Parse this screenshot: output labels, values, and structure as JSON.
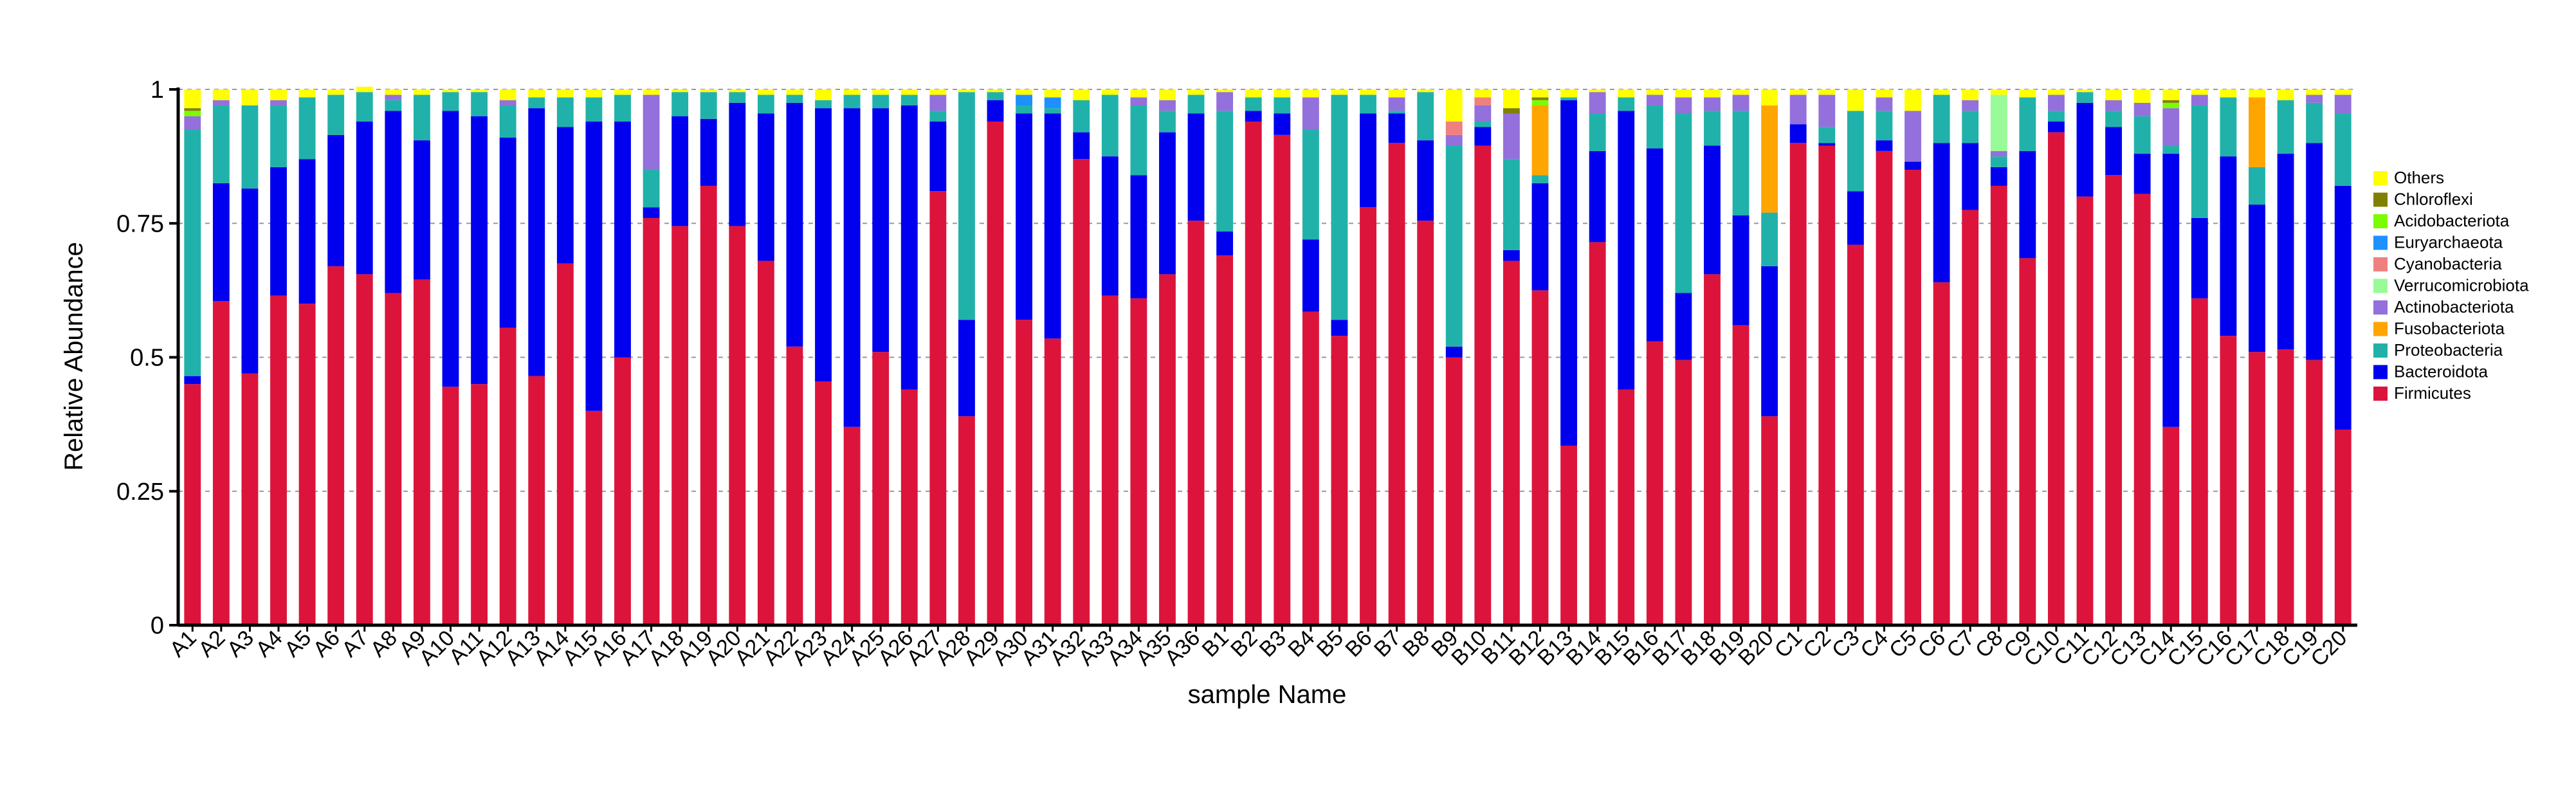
{
  "chart_data": {
    "type": "bar",
    "stacked": true,
    "xlabel": "sample Name",
    "ylabel": "Relative Abundance",
    "ylim": [
      0,
      1
    ],
    "yticks": [
      {
        "value": 0,
        "label": "0"
      },
      {
        "value": 0.25,
        "label": "0.25"
      },
      {
        "value": 0.5,
        "label": "0.5"
      },
      {
        "value": 0.75,
        "label": "0.75"
      },
      {
        "value": 1,
        "label": "1"
      }
    ],
    "grid": "dashed horizontal",
    "legend_position": "right",
    "categories": [
      "A1",
      "A2",
      "A3",
      "A4",
      "A5",
      "A6",
      "A7",
      "A8",
      "A9",
      "A10",
      "A11",
      "A12",
      "A13",
      "A14",
      "A15",
      "A16",
      "A17",
      "A18",
      "A19",
      "A20",
      "A21",
      "A22",
      "A23",
      "A24",
      "A25",
      "A26",
      "A27",
      "A28",
      "A29",
      "A30",
      "A31",
      "A32",
      "A33",
      "A34",
      "A35",
      "A36",
      "B1",
      "B2",
      "B3",
      "B4",
      "B5",
      "B6",
      "B7",
      "B8",
      "B9",
      "B10",
      "B11",
      "B12",
      "B13",
      "B14",
      "B15",
      "B16",
      "B17",
      "B18",
      "B19",
      "B20",
      "C1",
      "C2",
      "C3",
      "C4",
      "C5",
      "C6",
      "C7",
      "C8",
      "C9",
      "C10",
      "C11",
      "C12",
      "C13",
      "C14",
      "C15",
      "C16",
      "C17",
      "C18",
      "C19",
      "C20"
    ],
    "series": [
      {
        "name": "Firmicutes",
        "color": "#dc143c",
        "values": [
          0.45,
          0.605,
          0.47,
          0.615,
          0.6,
          0.67,
          0.655,
          0.62,
          0.645,
          0.445,
          0.45,
          0.555,
          0.465,
          0.675,
          0.4,
          0.5,
          0.76,
          0.745,
          0.82,
          0.745,
          0.68,
          0.52,
          0.455,
          0.37,
          0.51,
          0.44,
          0.81,
          0.39,
          0.94,
          0.57,
          0.535,
          0.87,
          0.615,
          0.61,
          0.655,
          0.755,
          0.69,
          0.94,
          0.915,
          0.585,
          0.54,
          0.78,
          0.9,
          0.755,
          0.5,
          0.895,
          0.68,
          0.625,
          0.335,
          0.715,
          0.44,
          0.53,
          0.495,
          0.655,
          0.56,
          0.39,
          0.9,
          0.895,
          0.71,
          0.885,
          0.85,
          0.64,
          0.775,
          0.82,
          0.685,
          0.92,
          0.8,
          0.84,
          0.805,
          0.37,
          0.61,
          0.54,
          0.51,
          0.515,
          0.495,
          0.365
        ]
      },
      {
        "name": "Bacteroidota",
        "color": "#0000ee",
        "values": [
          0.015,
          0.22,
          0.345,
          0.24,
          0.27,
          0.245,
          0.285,
          0.34,
          0.26,
          0.515,
          0.5,
          0.355,
          0.5,
          0.255,
          0.54,
          0.44,
          0.02,
          0.205,
          0.125,
          0.23,
          0.275,
          0.455,
          0.51,
          0.595,
          0.455,
          0.53,
          0.13,
          0.18,
          0.04,
          0.385,
          0.42,
          0.05,
          0.26,
          0.23,
          0.265,
          0.2,
          0.045,
          0.02,
          0.04,
          0.135,
          0.03,
          0.175,
          0.055,
          0.15,
          0.02,
          0.035,
          0.02,
          0.2,
          0.645,
          0.17,
          0.52,
          0.36,
          0.125,
          0.24,
          0.205,
          0.28,
          0.035,
          0.005,
          0.1,
          0.02,
          0.015,
          0.26,
          0.125,
          0.035,
          0.2,
          0.02,
          0.175,
          0.09,
          0.075,
          0.51,
          0.15,
          0.335,
          0.275,
          0.365,
          0.405,
          0.455
        ]
      },
      {
        "name": "Proteobacteria",
        "color": "#20b2aa",
        "values": [
          0.46,
          0.145,
          0.155,
          0.115,
          0.115,
          0.075,
          0.055,
          0.02,
          0.085,
          0.035,
          0.045,
          0.06,
          0.02,
          0.055,
          0.045,
          0.05,
          0.07,
          0.045,
          0.05,
          0.02,
          0.035,
          0.015,
          0.015,
          0.025,
          0.025,
          0.02,
          0.02,
          0.425,
          0.015,
          0.015,
          0.01,
          0.06,
          0.115,
          0.13,
          0.04,
          0.035,
          0.225,
          0.025,
          0.03,
          0.205,
          0.42,
          0.035,
          0.005,
          0.09,
          0.375,
          0.01,
          0.17,
          0.015,
          0.005,
          0.07,
          0.025,
          0.08,
          0.335,
          0.065,
          0.195,
          0.1,
          0.0,
          0.03,
          0.15,
          0.055,
          0.0,
          0.09,
          0.06,
          0.02,
          0.1,
          0.02,
          0.02,
          0.03,
          0.07,
          0.015,
          0.21,
          0.11,
          0.07,
          0.1,
          0.075,
          0.135
        ]
      },
      {
        "name": "Fusobacteriota",
        "color": "#ffa500",
        "values": [
          0,
          0,
          0,
          0,
          0,
          0,
          0,
          0,
          0,
          0,
          0,
          0,
          0,
          0,
          0,
          0,
          0,
          0,
          0,
          0,
          0,
          0,
          0,
          0,
          0,
          0,
          0,
          0,
          0,
          0,
          0,
          0,
          0,
          0,
          0,
          0,
          0,
          0,
          0,
          0,
          0,
          0,
          0,
          0,
          0,
          0,
          0,
          0.13,
          0,
          0,
          0,
          0,
          0,
          0,
          0,
          0.2,
          0,
          0,
          0,
          0,
          0,
          0,
          0,
          0,
          0,
          0,
          0,
          0,
          0,
          0,
          0,
          0,
          0.13,
          0,
          0,
          0
        ]
      },
      {
        "name": "Actinobacteriota",
        "color": "#9370db",
        "values": [
          0.025,
          0.01,
          0.0,
          0.01,
          0.0,
          0.0,
          0.0,
          0.01,
          0.0,
          0.0,
          0.0,
          0.01,
          0.0,
          0.0,
          0.0,
          0.0,
          0.14,
          0.0,
          0.0,
          0.0,
          0.0,
          0.0,
          0.0,
          0.0,
          0.0,
          0.0,
          0.03,
          0.0,
          0.0,
          0.0,
          0.0,
          0.0,
          0.0,
          0.015,
          0.02,
          0.0,
          0.035,
          0.0,
          0.0,
          0.06,
          0.0,
          0.0,
          0.025,
          0.0,
          0.02,
          0.03,
          0.085,
          0.0,
          0.0,
          0.04,
          0.0,
          0.02,
          0.03,
          0.025,
          0.03,
          0.0,
          0.055,
          0.06,
          0.0,
          0.025,
          0.095,
          0.0,
          0.02,
          0.01,
          0.0,
          0.03,
          0.0,
          0.02,
          0.025,
          0.07,
          0.02,
          0.0,
          0.0,
          0.0,
          0.015,
          0.035
        ]
      },
      {
        "name": "Verrucomicrobiota",
        "color": "#98fb98",
        "values": [
          0,
          0,
          0,
          0,
          0,
          0,
          0,
          0,
          0,
          0,
          0,
          0,
          0,
          0,
          0,
          0,
          0,
          0,
          0,
          0,
          0,
          0,
          0,
          0,
          0,
          0,
          0,
          0,
          0,
          0,
          0,
          0,
          0,
          0,
          0,
          0,
          0,
          0,
          0,
          0,
          0,
          0,
          0,
          0,
          0,
          0,
          0,
          0,
          0,
          0,
          0,
          0,
          0,
          0,
          0,
          0,
          0,
          0,
          0,
          0,
          0,
          0,
          0,
          0.105,
          0,
          0,
          0,
          0,
          0,
          0,
          0,
          0,
          0,
          0,
          0,
          0
        ]
      },
      {
        "name": "Cyanobacteria",
        "color": "#f08080",
        "values": [
          0,
          0,
          0,
          0,
          0,
          0,
          0,
          0,
          0,
          0,
          0,
          0,
          0,
          0,
          0,
          0,
          0,
          0,
          0,
          0,
          0,
          0,
          0,
          0,
          0,
          0,
          0,
          0,
          0,
          0,
          0,
          0,
          0,
          0,
          0,
          0,
          0,
          0,
          0,
          0,
          0,
          0,
          0,
          0,
          0.025,
          0.015,
          0,
          0,
          0,
          0,
          0,
          0,
          0,
          0,
          0,
          0,
          0,
          0,
          0,
          0,
          0,
          0,
          0,
          0,
          0,
          0,
          0,
          0,
          0,
          0,
          0,
          0,
          0,
          0,
          0,
          0
        ]
      },
      {
        "name": "Euryarchaeota",
        "color": "#1e90ff",
        "values": [
          0,
          0,
          0,
          0,
          0,
          0,
          0,
          0,
          0,
          0,
          0,
          0,
          0,
          0,
          0,
          0,
          0,
          0,
          0,
          0,
          0,
          0,
          0,
          0,
          0,
          0,
          0,
          0,
          0,
          0.02,
          0.02,
          0,
          0,
          0,
          0,
          0,
          0,
          0,
          0,
          0,
          0,
          0,
          0,
          0,
          0,
          0,
          0,
          0,
          0,
          0,
          0,
          0,
          0,
          0,
          0,
          0,
          0,
          0,
          0,
          0,
          0,
          0,
          0,
          0,
          0,
          0,
          0,
          0,
          0,
          0,
          0,
          0,
          0,
          0,
          0,
          0
        ]
      },
      {
        "name": "Acidobacteriota",
        "color": "#7cfc00",
        "values": [
          0.01,
          0,
          0,
          0,
          0,
          0,
          0,
          0,
          0,
          0,
          0,
          0,
          0,
          0,
          0,
          0,
          0,
          0,
          0,
          0,
          0,
          0,
          0,
          0,
          0,
          0,
          0,
          0,
          0,
          0,
          0,
          0,
          0,
          0,
          0,
          0,
          0,
          0,
          0,
          0,
          0,
          0,
          0,
          0,
          0,
          0,
          0,
          0.01,
          0,
          0,
          0,
          0,
          0,
          0,
          0,
          0,
          0,
          0,
          0,
          0,
          0,
          0,
          0,
          0,
          0,
          0,
          0,
          0,
          0,
          0.01,
          0,
          0,
          0,
          0,
          0,
          0
        ]
      },
      {
        "name": "Chloroflexi",
        "color": "#808000",
        "values": [
          0.005,
          0,
          0,
          0,
          0,
          0,
          0,
          0,
          0,
          0,
          0,
          0,
          0,
          0,
          0,
          0,
          0,
          0,
          0,
          0,
          0,
          0,
          0,
          0,
          0,
          0,
          0,
          0,
          0,
          0,
          0,
          0,
          0,
          0,
          0,
          0,
          0,
          0,
          0,
          0,
          0,
          0,
          0,
          0,
          0,
          0,
          0.01,
          0.005,
          0,
          0,
          0,
          0,
          0,
          0,
          0,
          0,
          0,
          0,
          0,
          0,
          0,
          0,
          0,
          0,
          0,
          0,
          0,
          0,
          0,
          0.005,
          0,
          0,
          0,
          0,
          0,
          0
        ]
      },
      {
        "name": "Others",
        "color": "#ffff00",
        "values": [
          0.035,
          0.02,
          0.03,
          0.02,
          0.015,
          0.01,
          0.01,
          0.01,
          0.01,
          0.005,
          0.005,
          0.02,
          0.015,
          0.015,
          0.015,
          0.01,
          0.01,
          0.005,
          0.005,
          0.005,
          0.01,
          0.01,
          0.02,
          0.01,
          0.01,
          0.01,
          0.01,
          0.005,
          0.005,
          0.01,
          0.015,
          0.02,
          0.01,
          0.015,
          0.02,
          0.01,
          0.005,
          0.015,
          0.015,
          0.015,
          0.01,
          0.01,
          0.015,
          0.005,
          0.06,
          0.015,
          0.035,
          0.015,
          0.015,
          0.005,
          0.015,
          0.01,
          0.015,
          0.015,
          0.01,
          0.03,
          0.01,
          0.01,
          0.04,
          0.015,
          0.04,
          0.01,
          0.02,
          0.01,
          0.015,
          0.01,
          0.005,
          0.02,
          0.025,
          0.02,
          0.01,
          0.015,
          0.015,
          0.02,
          0.01,
          0.01
        ]
      }
    ]
  }
}
